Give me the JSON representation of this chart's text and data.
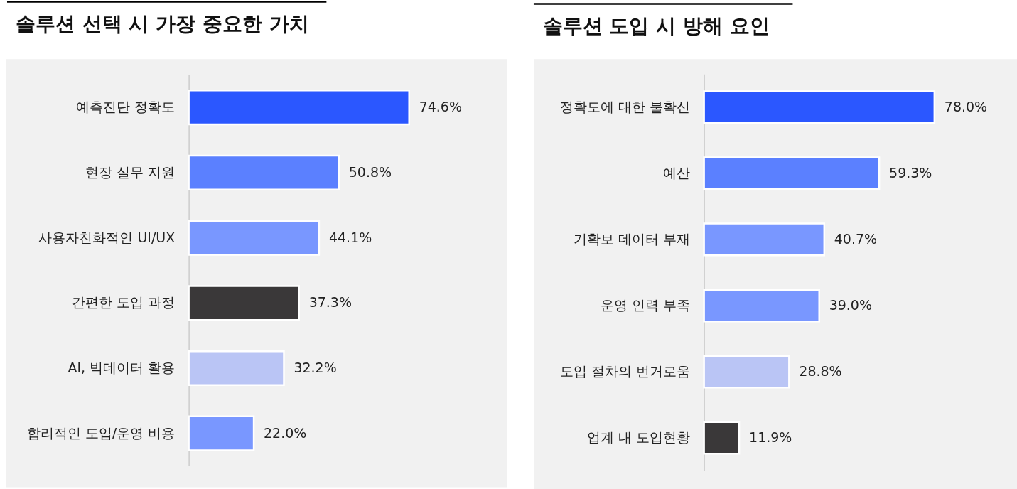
{
  "chart_data": [
    {
      "type": "bar",
      "orientation": "horizontal",
      "title": "솔루션 선택 시 가장 중요한 가치",
      "categories": [
        "예측진단 정확도",
        "현장 실무 지원",
        "사용자친화적인 UI/UX",
        "간편한 도입 과정",
        "AI, 빅데이터 활용",
        "합리적인 도입/운영 비용"
      ],
      "values": [
        74.6,
        50.8,
        44.1,
        37.3,
        32.2,
        22.0
      ],
      "colors": [
        "#2b57ff",
        "#5b80ff",
        "#7997ff",
        "#3a3839",
        "#bac5f5",
        "#7997ff"
      ],
      "value_labels": [
        "74.6%",
        "50.8%",
        "44.1%",
        "37.3%",
        "32.2%",
        "22.0%"
      ]
    },
    {
      "type": "bar",
      "orientation": "horizontal",
      "title": "솔루션 도입 시 방해 요인",
      "categories": [
        "정확도에 대한 불확신",
        "예산",
        "기확보 데이터 부재",
        "운영 인력 부족",
        "도입 절차의 번거로움",
        "업계 내 도입현황"
      ],
      "values": [
        78.0,
        59.3,
        40.7,
        39.0,
        28.8,
        11.9
      ],
      "colors": [
        "#2b57ff",
        "#5b80ff",
        "#7997ff",
        "#7997ff",
        "#bac5f5",
        "#3a3839"
      ],
      "value_labels": [
        "78.0%",
        "59.3%",
        "40.7%",
        "39.0%",
        "28.8%",
        "11.9%"
      ]
    }
  ]
}
